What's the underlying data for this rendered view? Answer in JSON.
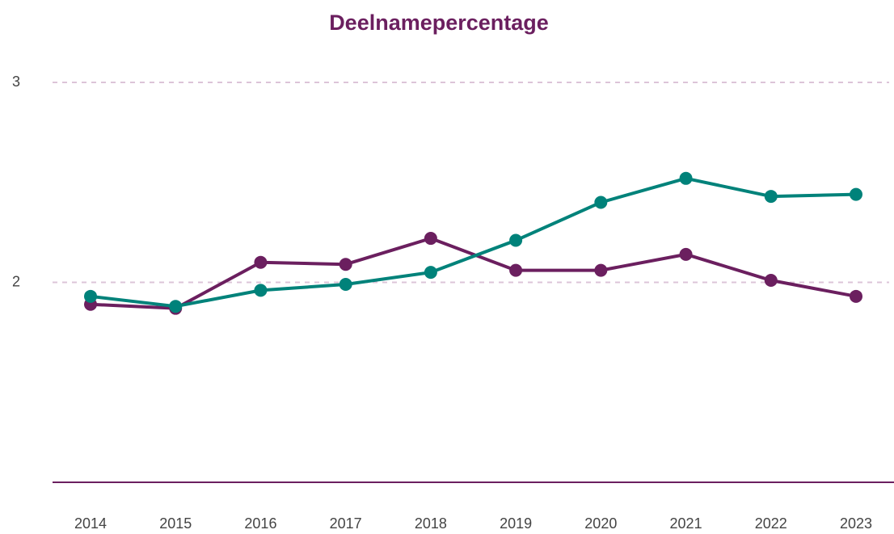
{
  "chart_data": {
    "type": "line",
    "title": "Deelnamepercentage",
    "categories": [
      "2014",
      "2015",
      "2016",
      "2017",
      "2018",
      "2019",
      "2020",
      "2021",
      "2022",
      "2023"
    ],
    "series": [
      {
        "color": "#6b1f5f",
        "values": [
          1.89,
          1.87,
          2.1,
          2.09,
          2.22,
          2.06,
          2.06,
          2.14,
          2.01,
          1.93
        ]
      },
      {
        "color": "#00827a",
        "values": [
          1.93,
          1.88,
          1.96,
          1.99,
          2.05,
          2.21,
          2.4,
          2.52,
          2.43,
          2.44
        ]
      }
    ],
    "ylim": [
      1,
      3
    ],
    "yticks": [
      2,
      3
    ],
    "grid": true
  }
}
